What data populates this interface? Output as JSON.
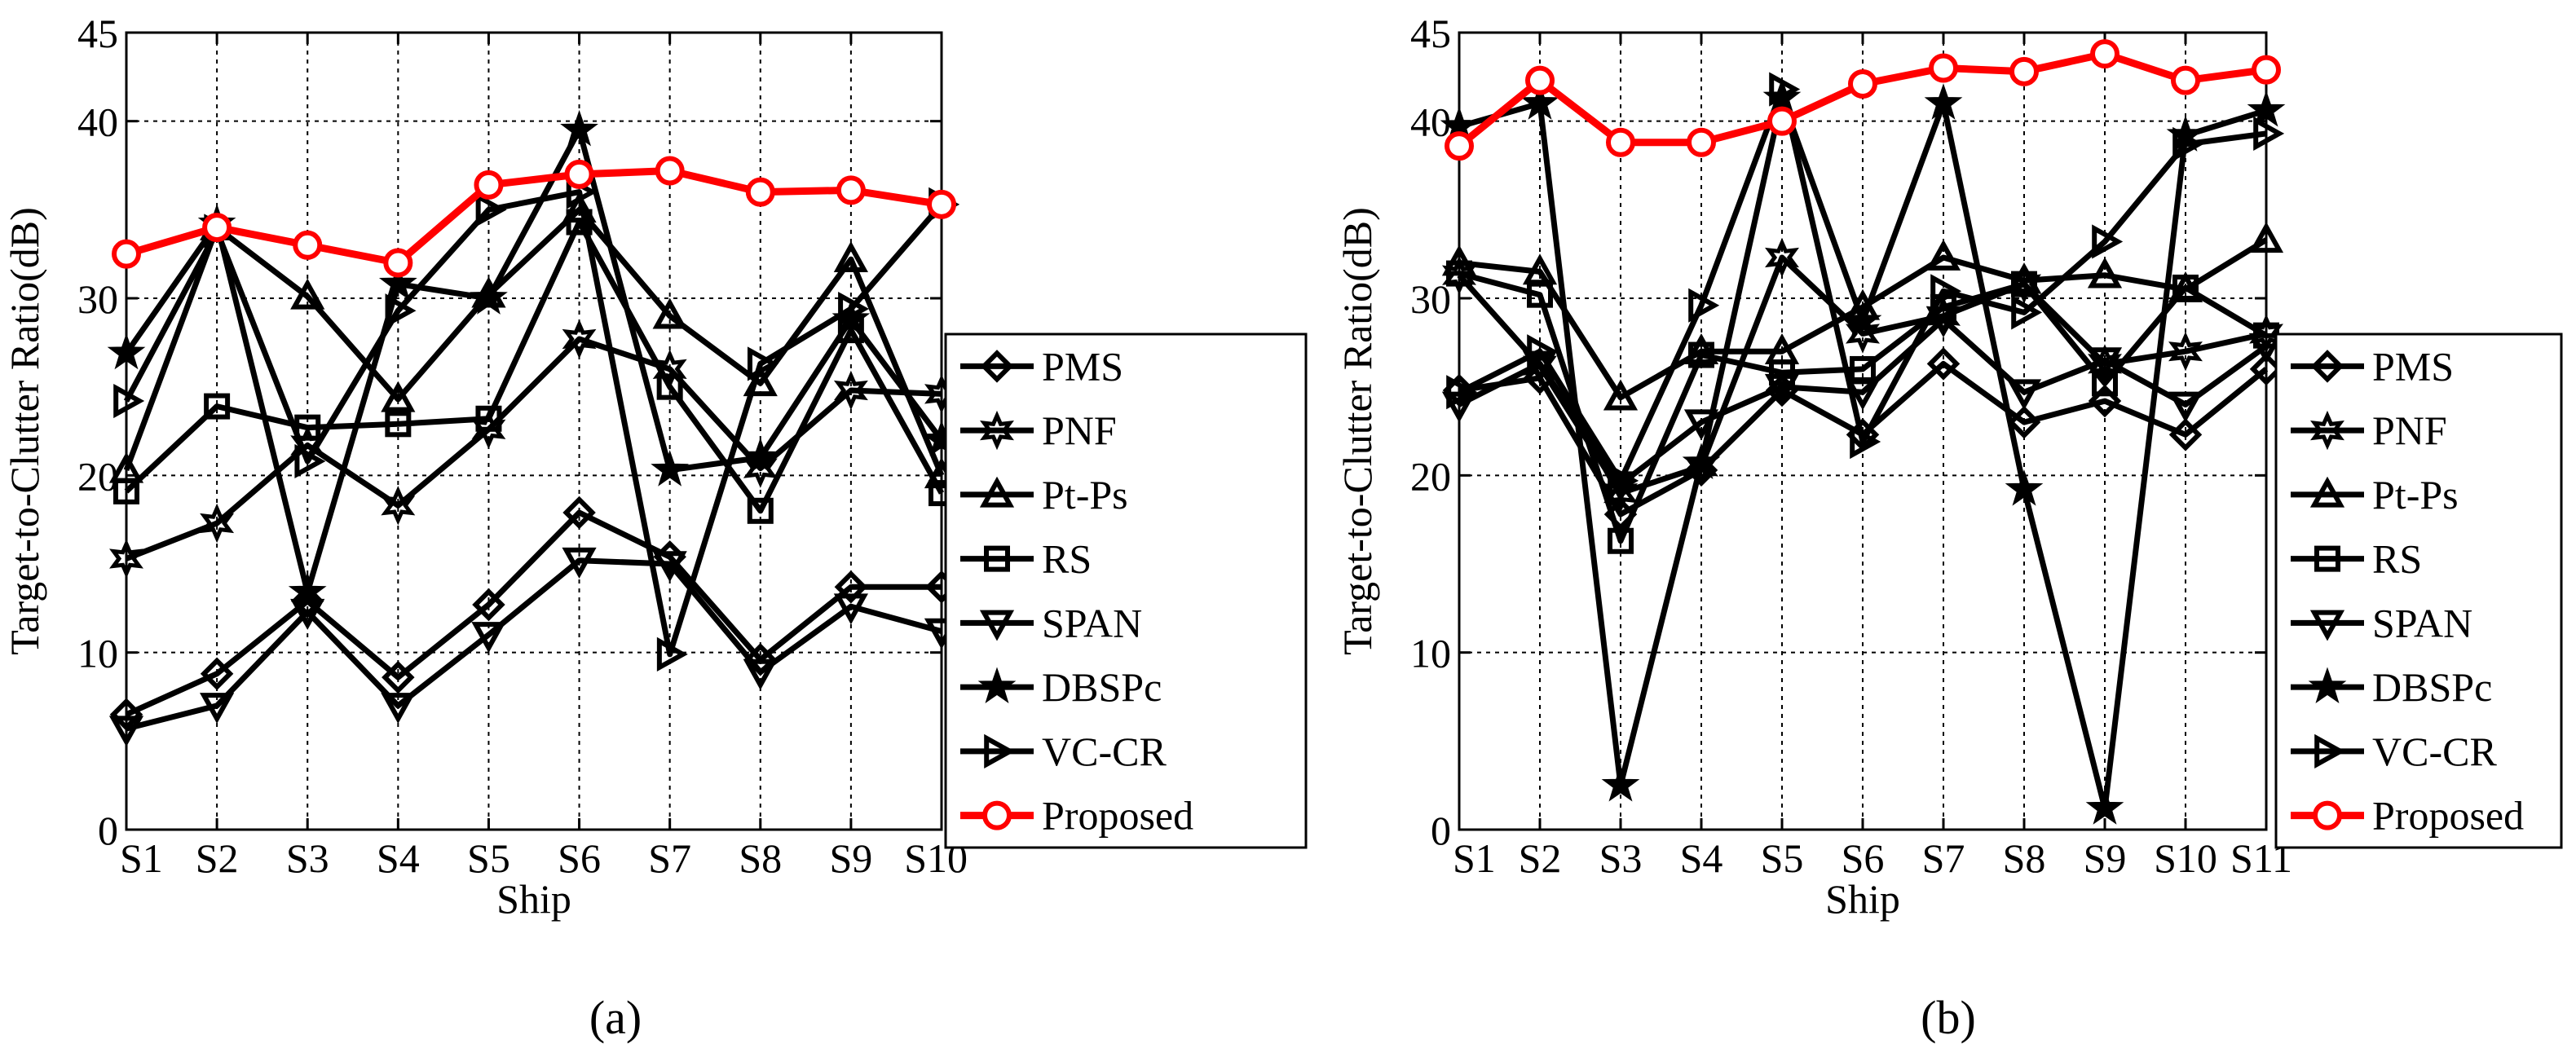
{
  "colors": {
    "series_default": "#000000",
    "proposed": "#ff0000"
  },
  "legend_labels": [
    "PMS",
    "PNF",
    "Pt-Ps",
    "RS",
    "SPAN",
    "DBSPc",
    "VC-CR",
    "Proposed"
  ],
  "series_markers": [
    "diamond",
    "hexagram",
    "triangle-up",
    "square",
    "triangle-down",
    "pentagram",
    "triangle-right",
    "circle"
  ],
  "chart_data": [
    {
      "type": "line",
      "panel_label": "(a)",
      "xlabel": "Ship",
      "ylabel": "Target-to-Clutter Ratio(dB)",
      "ylim": [
        0,
        45
      ],
      "yticks": [
        0,
        10,
        20,
        30,
        40,
        45
      ],
      "grid": true,
      "legend": "right",
      "categories": [
        "S1",
        "S2",
        "S3",
        "S4",
        "S5",
        "S6",
        "S7",
        "S8",
        "S9",
        "S10"
      ],
      "series": [
        {
          "name": "PMS",
          "values": [
            6.5,
            8.8,
            12.9,
            8.6,
            12.7,
            17.9,
            15.4,
            9.6,
            13.7,
            13.7
          ]
        },
        {
          "name": "PNF",
          "values": [
            15.3,
            17.3,
            21.7,
            18.3,
            22.6,
            27.7,
            26.0,
            20.4,
            24.8,
            24.6
          ]
        },
        {
          "name": "Pt-Ps",
          "values": [
            20.3,
            34.0,
            30.1,
            24.3,
            30.2,
            35.0,
            29.0,
            25.2,
            32.2,
            20.0
          ]
        },
        {
          "name": "RS",
          "values": [
            19.1,
            23.9,
            22.7,
            22.9,
            23.2,
            34.3,
            25.0,
            18.0,
            28.2,
            19.0
          ]
        },
        {
          "name": "SPAN",
          "values": [
            5.7,
            7.0,
            12.3,
            7.0,
            11.0,
            15.2,
            15.0,
            8.9,
            12.6,
            11.2
          ]
        },
        {
          "name": "DBSPc",
          "values": [
            26.9,
            34.2,
            13.4,
            30.8,
            30.0,
            39.5,
            20.3,
            21.0,
            28.8,
            22.0
          ]
        },
        {
          "name": "VC-CR",
          "values": [
            24.2,
            33.8,
            20.8,
            29.3,
            35.0,
            36.0,
            9.9,
            26.3,
            29.4,
            35.3
          ]
        },
        {
          "name": "Proposed",
          "values": [
            32.5,
            34.0,
            33.0,
            32.0,
            36.4,
            37.0,
            37.2,
            36.0,
            36.1,
            35.3
          ]
        }
      ]
    },
    {
      "type": "line",
      "panel_label": "(b)",
      "xlabel": "Ship",
      "ylabel": "Target-to-Clutter Ratio(dB)",
      "ylim": [
        0,
        45
      ],
      "yticks": [
        0,
        10,
        20,
        30,
        40,
        45
      ],
      "grid": true,
      "legend": "right",
      "categories": [
        "S1",
        "S2",
        "S3",
        "S4",
        "S5",
        "S6",
        "S7",
        "S8",
        "S9",
        "S10",
        "S11"
      ],
      "series": [
        {
          "name": "PMS",
          "values": [
            24.8,
            25.5,
            17.8,
            20.3,
            24.8,
            22.3,
            26.3,
            23.0,
            24.2,
            22.3,
            26.0
          ]
        },
        {
          "name": "PNF",
          "values": [
            31.3,
            26.2,
            19.0,
            20.5,
            32.3,
            28.0,
            29.0,
            30.8,
            26.3,
            27.0,
            28.0
          ]
        },
        {
          "name": "Pt-Ps",
          "values": [
            32.0,
            31.5,
            24.4,
            27.0,
            27.0,
            29.5,
            32.3,
            31.0,
            31.3,
            30.5,
            33.3
          ]
        },
        {
          "name": "RS",
          "values": [
            31.4,
            30.2,
            16.3,
            26.8,
            25.8,
            26.0,
            29.5,
            30.8,
            25.2,
            30.6,
            27.9
          ]
        },
        {
          "name": "SPAN",
          "values": [
            24.0,
            26.3,
            19.5,
            23.0,
            25.0,
            24.7,
            28.8,
            24.7,
            26.5,
            24.0,
            27.3
          ]
        },
        {
          "name": "DBSPc",
          "values": [
            39.7,
            41.0,
            2.5,
            20.7,
            41.3,
            28.7,
            41.0,
            19.2,
            1.2,
            39.2,
            40.6
          ]
        },
        {
          "name": "VC-CR",
          "values": [
            24.7,
            27.0,
            19.7,
            29.6,
            41.8,
            21.9,
            30.4,
            29.2,
            33.2,
            38.7,
            39.3
          ]
        },
        {
          "name": "Proposed",
          "values": [
            38.6,
            42.3,
            38.8,
            38.8,
            40.0,
            42.1,
            43.0,
            42.8,
            43.8,
            42.3,
            42.9
          ]
        }
      ]
    }
  ]
}
